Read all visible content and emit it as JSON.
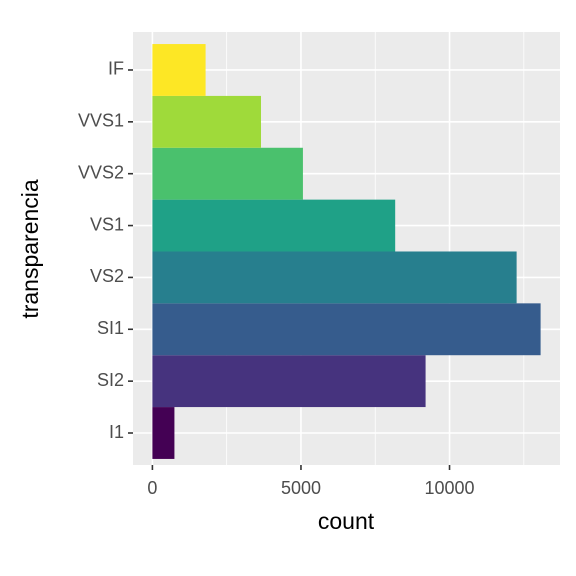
{
  "chart_data": {
    "type": "bar",
    "orientation": "horizontal",
    "x_label": "count",
    "y_label": "transparencia",
    "categories": [
      "I1",
      "SI2",
      "SI1",
      "VS2",
      "VS1",
      "VVS2",
      "VVS1",
      "IF"
    ],
    "values": [
      741,
      9194,
      13065,
      12258,
      8171,
      5066,
      3655,
      1790
    ],
    "colors": [
      "#440154",
      "#46337e",
      "#365c8d",
      "#277f8e",
      "#1fa187",
      "#4ac16d",
      "#9fda3a",
      "#fde725"
    ],
    "xlim": [
      -653,
      13718
    ],
    "xticks": [
      0,
      5000,
      10000
    ],
    "minor_xticks": [
      2500,
      7500,
      12500
    ],
    "grid": true
  }
}
